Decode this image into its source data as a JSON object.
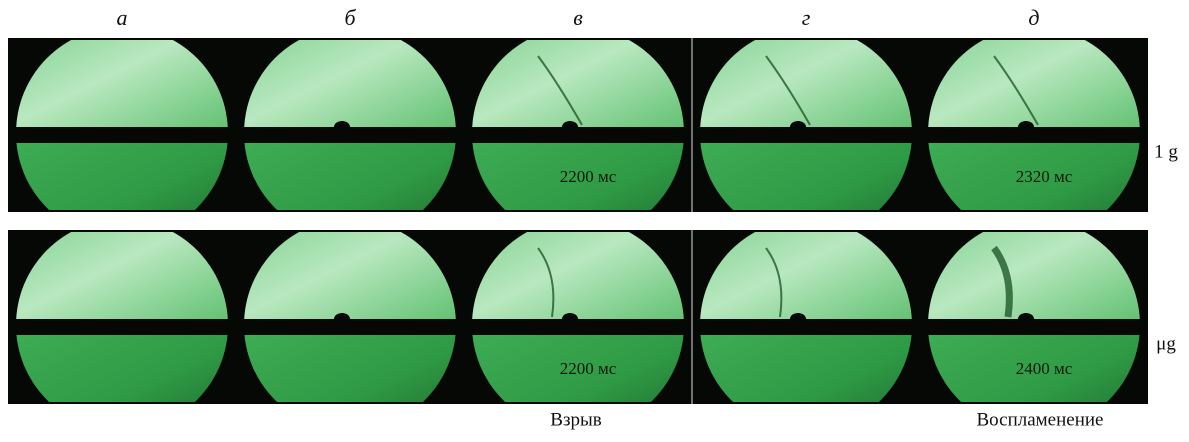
{
  "column_labels": [
    "а",
    "б",
    "в",
    "г",
    "д"
  ],
  "rows": [
    {
      "label": "1 g",
      "timestamps": [
        null,
        null,
        "2200 мс",
        null,
        "2320 мс"
      ]
    },
    {
      "label": "μg",
      "timestamps": [
        null,
        null,
        "2200 мс",
        null,
        "2400 мс"
      ]
    }
  ],
  "captions": [
    "Взрыв",
    "Воспламенение"
  ]
}
